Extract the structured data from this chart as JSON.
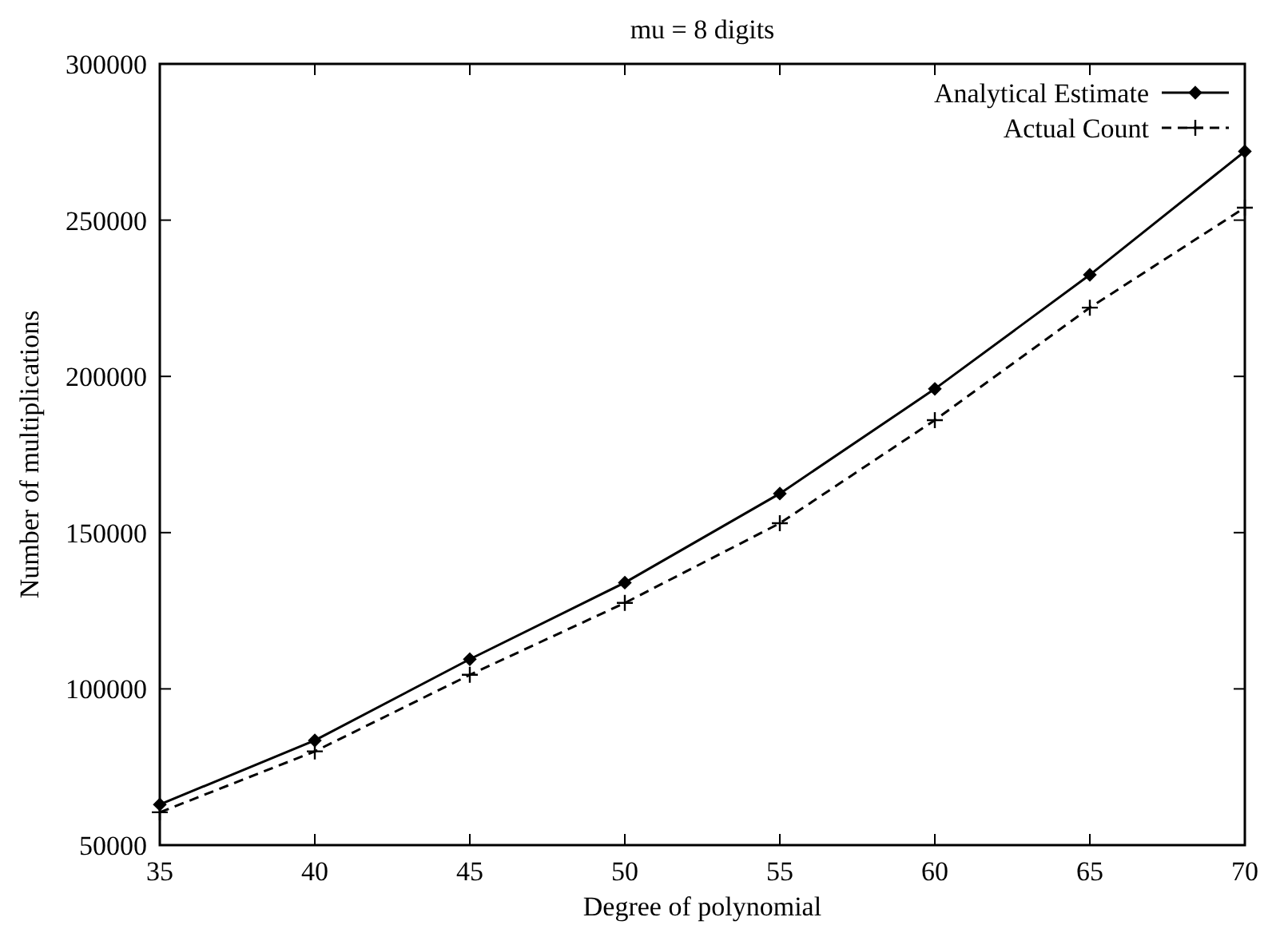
{
  "chart_data": {
    "type": "line",
    "title": "mu = 8 digits",
    "xlabel": "Degree of polynomial",
    "ylabel": "Number of multiplications",
    "x": [
      35,
      40,
      45,
      50,
      55,
      60,
      65,
      70
    ],
    "series": [
      {
        "name": "Analytical Estimate",
        "color": "#000000",
        "marker": "diamond",
        "line_style": "solid",
        "values": [
          63000,
          83500,
          109500,
          134000,
          162500,
          196000,
          232500,
          272000
        ]
      },
      {
        "name": "Actual Count",
        "color": "#000000",
        "marker": "cross",
        "line_style": "dashed",
        "values": [
          60500,
          80000,
          104500,
          127500,
          153000,
          186000,
          222000,
          254000
        ]
      }
    ],
    "xlim": [
      35,
      70
    ],
    "xticks": [
      35,
      40,
      45,
      50,
      55,
      60,
      65,
      70
    ],
    "ylim": [
      50000,
      300000
    ],
    "yticks": [
      50000,
      100000,
      150000,
      200000,
      250000,
      300000
    ],
    "grid": false,
    "legend": "top right"
  }
}
